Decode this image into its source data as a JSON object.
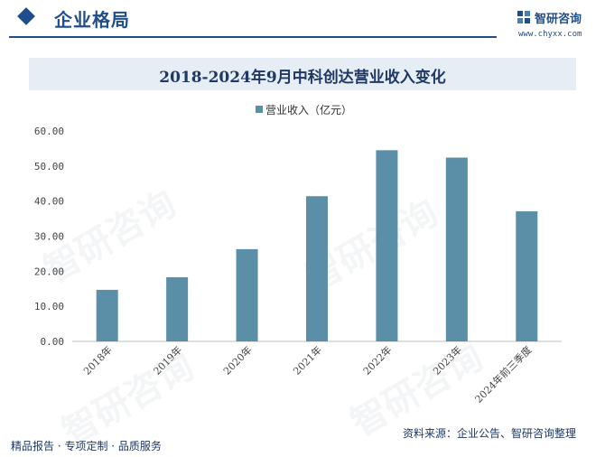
{
  "header": {
    "section_title": "企业格局",
    "brand_name": "智研咨询",
    "brand_url": "www.chyxx.com"
  },
  "chart_title": "2018-2024年9月中科创达营业收入变化",
  "footer": {
    "left": "精品报告 · 专项定制 · 品质服务",
    "source": "资料来源：企业公告、智研咨询整理"
  },
  "colors": {
    "bar": "#5b8fa8",
    "accent": "#1f4e8c"
  },
  "chart_data": {
    "type": "bar",
    "title": "2018-2024年9月中科创达营业收入变化",
    "categories": [
      "2018年",
      "2019年",
      "2020年",
      "2021年",
      "2022年",
      "2023年",
      "2024年前三季度"
    ],
    "series": [
      {
        "name": "营业收入（亿元）",
        "values": [
          14.7,
          18.3,
          26.3,
          41.4,
          54.5,
          52.4,
          37.1
        ]
      }
    ],
    "yticks": [
      "0.00",
      "10.00",
      "20.00",
      "30.00",
      "40.00",
      "50.00",
      "60.00"
    ],
    "ylim": [
      0,
      60
    ],
    "grid": false,
    "legend": "top-center"
  }
}
